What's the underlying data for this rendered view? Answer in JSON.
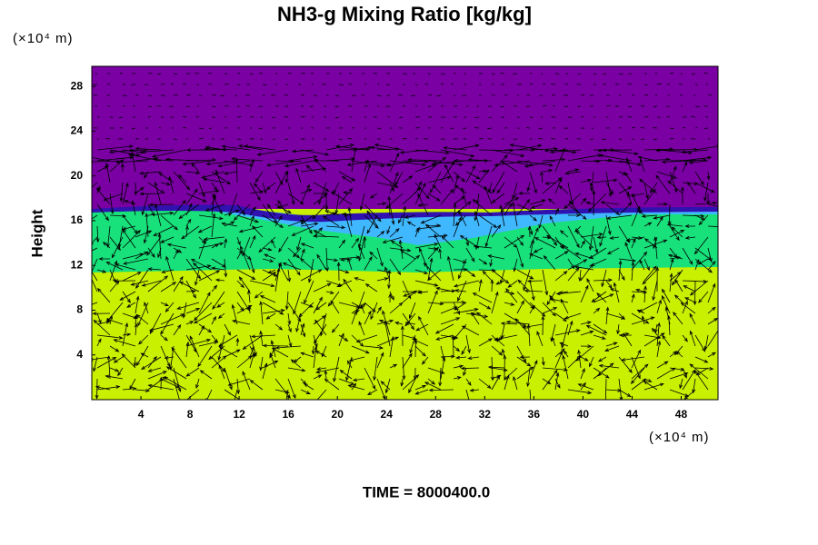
{
  "chart_data": {
    "type": "heatmap",
    "title": "NH3-g Mixing Ratio [kg/kg]",
    "y_label": "Height",
    "y_unit": "(×10⁴ m)",
    "x_unit": "(×10⁴ m)",
    "time_label": "TIME = 8000400.0",
    "xlim": [
      0,
      51
    ],
    "ylim": [
      0,
      29.8
    ],
    "xticks": [
      4,
      8,
      12,
      16,
      20,
      24,
      28,
      32,
      36,
      40,
      44,
      48
    ],
    "yticks": [
      4,
      8,
      12,
      16,
      20,
      24,
      28
    ]
  }
}
